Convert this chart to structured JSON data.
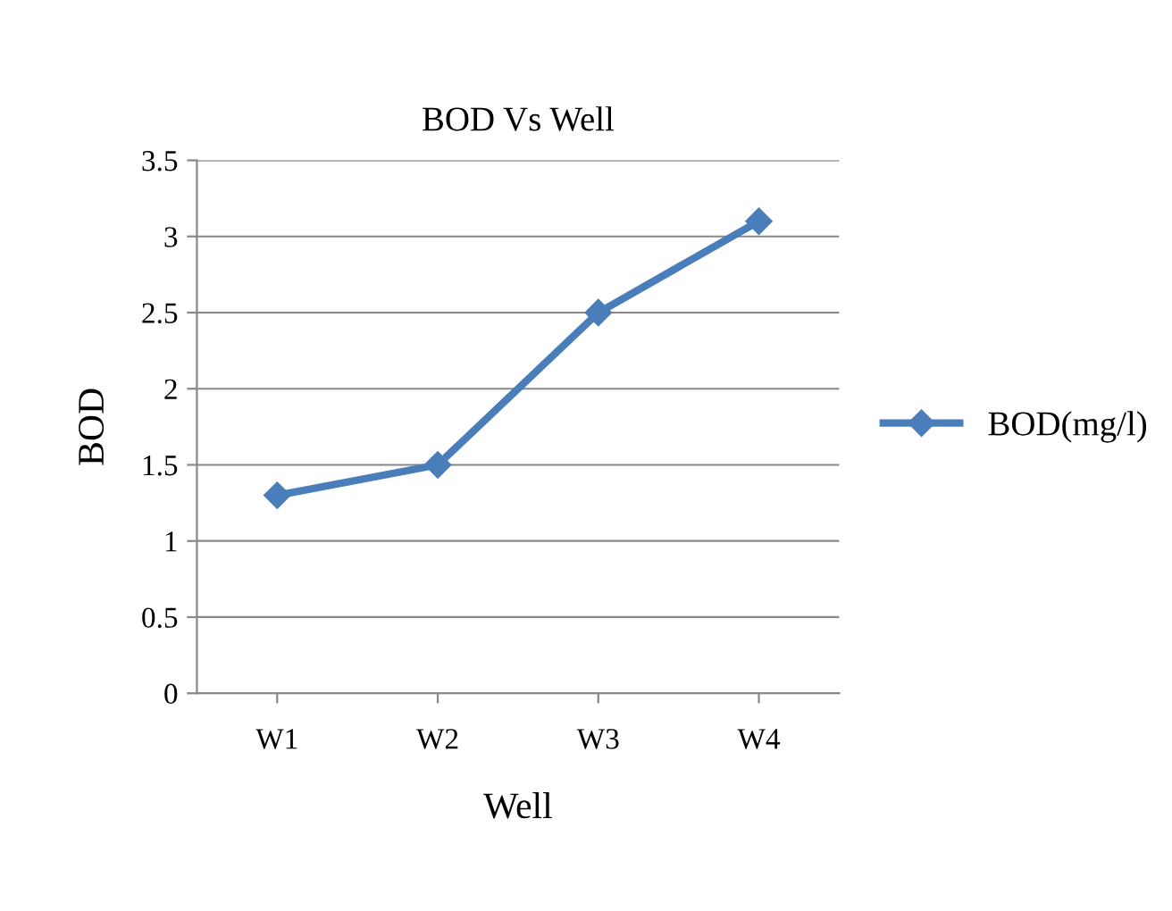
{
  "chart_data": {
    "type": "line",
    "title": "BOD Vs Well",
    "xlabel": "Well",
    "ylabel": "BOD",
    "categories": [
      "W1",
      "W2",
      "W3",
      "W4"
    ],
    "series": [
      {
        "name": "BOD(mg/l)",
        "color": "#4a7ebb",
        "values": [
          1.3,
          1.5,
          2.5,
          3.1
        ]
      }
    ],
    "ylim": [
      0,
      3.5
    ],
    "yticks": [
      0,
      0.5,
      1,
      1.5,
      2,
      2.5,
      3,
      3.5
    ],
    "grid": "y",
    "legend": "right",
    "marker": "diamond",
    "line_style": "solid"
  }
}
